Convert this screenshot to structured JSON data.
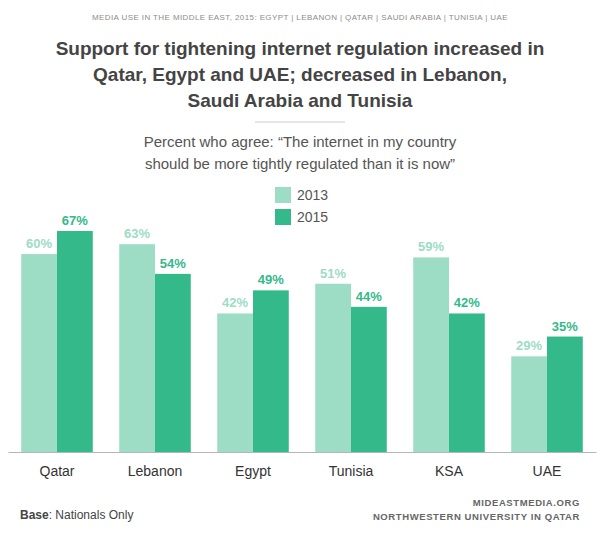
{
  "chart_data": {
    "type": "bar",
    "title": [
      "Support for tightening internet regulation increased in",
      "Qatar, Egypt and UAE; decreased in Lebanon,",
      "Saudi Arabia and Tunisia"
    ],
    "subtitle": [
      "Percent who agree: “The internet in my country",
      "should be more tightly regulated than it is now”"
    ],
    "annotations": [
      "MEDIA USE IN THE MIDDLE EAST, 2015: EGYPT | LEBANON | QATAR | SAUDI ARABIA | TUNISIA | UAE",
      "Base",
      ": Nationals Only",
      "MIDEASTMEDIA.ORG",
      "NORTHWESTERN UNIVERSITY IN QATAR"
    ],
    "categories": [
      "Qatar",
      "Lebanon",
      "Egypt",
      "Tunisia",
      "KSA",
      "UAE"
    ],
    "series": [
      {
        "name": "2013",
        "color": "#9ddcc5",
        "values": [
          60,
          63,
          42,
          51,
          59,
          29
        ],
        "value_labels": [
          "60%",
          "63%",
          "42%",
          "51%",
          "59%",
          "29%"
        ]
      },
      {
        "name": "2015",
        "color": "#34b98a",
        "values": [
          67,
          54,
          49,
          44,
          42,
          35
        ],
        "value_labels": [
          "67%",
          "54%",
          "49%",
          "44%",
          "42%",
          "35%"
        ]
      }
    ],
    "data_labels": true,
    "legend": "top",
    "grid": false,
    "tick_labels": "x"
  }
}
